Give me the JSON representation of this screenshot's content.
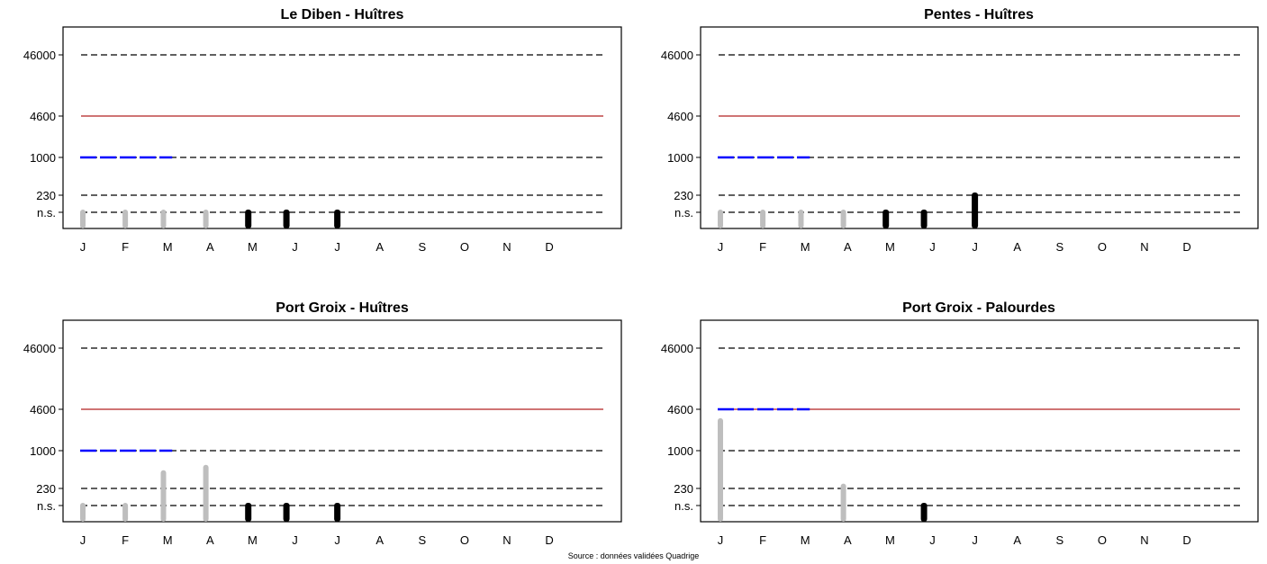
{
  "footer": {
    "source": "Source : données validées Quadrige"
  },
  "chart_data": [
    {
      "type": "bar",
      "title": "Le Diben - Huîtres",
      "x_tick_labels": [
        "J",
        "F",
        "M",
        "A",
        "M",
        "J",
        "J",
        "A",
        "S",
        "O",
        "N",
        "D"
      ],
      "y_tick_labels": [
        "46000",
        "4600",
        "1000",
        "230",
        "n.s."
      ],
      "reference_lines": [
        {
          "level": "46000",
          "style": "dashed",
          "color": "#000000"
        },
        {
          "level": "4600",
          "style": "solid",
          "color": "#b22222"
        },
        {
          "level": "1000",
          "style": "dashed",
          "color": "#000000"
        },
        {
          "level": "230",
          "style": "dashed",
          "color": "#000000"
        },
        {
          "level": "n.s.",
          "style": "dashed",
          "color": "#000000"
        }
      ],
      "highlight_line": {
        "level": "1000",
        "from_month": 1,
        "to_month": 3,
        "color": "#0000ff"
      },
      "series": [
        {
          "color": "#bebebe",
          "points": [
            {
              "month": 1.0,
              "value": "n.s."
            },
            {
              "month": 2.0,
              "value": "n.s."
            },
            {
              "month": 2.9,
              "value": "n.s."
            },
            {
              "month": 3.9,
              "value": "n.s."
            }
          ]
        },
        {
          "color": "#000000",
          "points": [
            {
              "month": 4.9,
              "value": "n.s."
            },
            {
              "month": 5.8,
              "value": "n.s."
            },
            {
              "month": 7.0,
              "value": "n.s."
            }
          ]
        }
      ]
    },
    {
      "type": "bar",
      "title": "Pentes - Huîtres",
      "x_tick_labels": [
        "J",
        "F",
        "M",
        "A",
        "M",
        "J",
        "J",
        "A",
        "S",
        "O",
        "N",
        "D"
      ],
      "y_tick_labels": [
        "46000",
        "4600",
        "1000",
        "230",
        "n.s."
      ],
      "reference_lines": [
        {
          "level": "46000",
          "style": "dashed",
          "color": "#000000"
        },
        {
          "level": "4600",
          "style": "solid",
          "color": "#b22222"
        },
        {
          "level": "1000",
          "style": "dashed",
          "color": "#000000"
        },
        {
          "level": "230",
          "style": "dashed",
          "color": "#000000"
        },
        {
          "level": "n.s.",
          "style": "dashed",
          "color": "#000000"
        }
      ],
      "highlight_line": {
        "level": "1000",
        "from_month": 1,
        "to_month": 3,
        "color": "#0000ff"
      },
      "series": [
        {
          "color": "#bebebe",
          "points": [
            {
              "month": 1.0,
              "value": "n.s."
            },
            {
              "month": 2.0,
              "value": "n.s."
            },
            {
              "month": 2.9,
              "value": "n.s."
            },
            {
              "month": 3.9,
              "value": "n.s."
            }
          ]
        },
        {
          "color": "#000000",
          "points": [
            {
              "month": 4.9,
              "value": "n.s."
            },
            {
              "month": 5.8,
              "value": "n.s."
            },
            {
              "month": 7.0,
              "value": "230"
            }
          ]
        }
      ]
    },
    {
      "type": "bar",
      "title": "Port Groix - Huîtres",
      "x_tick_labels": [
        "J",
        "F",
        "M",
        "A",
        "M",
        "J",
        "J",
        "A",
        "S",
        "O",
        "N",
        "D"
      ],
      "y_tick_labels": [
        "46000",
        "4600",
        "1000",
        "230",
        "n.s."
      ],
      "reference_lines": [
        {
          "level": "46000",
          "style": "dashed",
          "color": "#000000"
        },
        {
          "level": "4600",
          "style": "solid",
          "color": "#b22222"
        },
        {
          "level": "1000",
          "style": "dashed",
          "color": "#000000"
        },
        {
          "level": "230",
          "style": "dashed",
          "color": "#000000"
        },
        {
          "level": "n.s.",
          "style": "dashed",
          "color": "#000000"
        }
      ],
      "highlight_line": {
        "level": "1000",
        "from_month": 1,
        "to_month": 3,
        "color": "#0000ff"
      },
      "series": [
        {
          "color": "#bebebe",
          "points": [
            {
              "month": 1.0,
              "value": "n.s."
            },
            {
              "month": 2.0,
              "value": "n.s."
            },
            {
              "month": 2.9,
              "value": 420
            },
            {
              "month": 3.9,
              "value": 520
            }
          ]
        },
        {
          "color": "#000000",
          "points": [
            {
              "month": 4.9,
              "value": "n.s."
            },
            {
              "month": 5.8,
              "value": "n.s."
            },
            {
              "month": 7.0,
              "value": "n.s."
            }
          ]
        }
      ]
    },
    {
      "type": "bar",
      "title": "Port Groix - Palourdes",
      "x_tick_labels": [
        "J",
        "F",
        "M",
        "A",
        "M",
        "J",
        "J",
        "A",
        "S",
        "O",
        "N",
        "D"
      ],
      "y_tick_labels": [
        "46000",
        "4600",
        "1000",
        "230",
        "n.s."
      ],
      "reference_lines": [
        {
          "level": "46000",
          "style": "dashed",
          "color": "#000000"
        },
        {
          "level": "4600",
          "style": "solid",
          "color": "#b22222"
        },
        {
          "level": "1000",
          "style": "dashed",
          "color": "#000000"
        },
        {
          "level": "230",
          "style": "dashed",
          "color": "#000000"
        },
        {
          "level": "n.s.",
          "style": "dashed",
          "color": "#000000"
        }
      ],
      "highlight_line": {
        "level": "4600",
        "from_month": 1,
        "to_month": 3,
        "color": "#0000ff"
      },
      "series": [
        {
          "color": "#bebebe",
          "points": [
            {
              "month": 1.0,
              "value": 3000
            },
            {
              "month": 3.9,
              "value": 250
            }
          ]
        },
        {
          "color": "#000000",
          "points": [
            {
              "month": 5.8,
              "value": "n.s."
            }
          ]
        }
      ]
    }
  ]
}
